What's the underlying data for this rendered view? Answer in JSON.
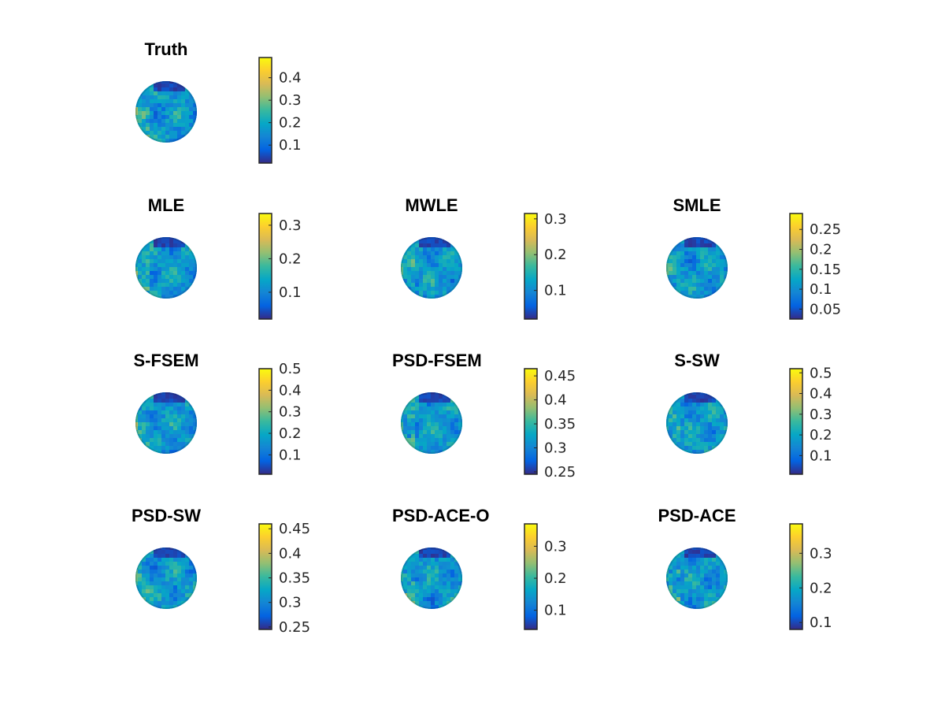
{
  "colors": {
    "parula": [
      "#352a87",
      "#0363e1",
      "#1485d4",
      "#06a7c6",
      "#38b99e",
      "#92bf73",
      "#d9ba56",
      "#fcce2e",
      "#f9fb0e"
    ],
    "axes": "#262626",
    "background": "#ffffff"
  },
  "chart_data": [
    {
      "type": "heatmap",
      "title": "Truth",
      "colorbar": {
        "ticks": [
          "0.1",
          "0.2",
          "0.3",
          "0.4"
        ],
        "range": [
          0.02,
          0.49
        ]
      }
    },
    {
      "type": "heatmap",
      "title": "MLE",
      "colorbar": {
        "ticks": [
          "0.1",
          "0.2",
          "0.3"
        ],
        "range": [
          0.02,
          0.335
        ]
      }
    },
    {
      "type": "heatmap",
      "title": "MWLE",
      "colorbar": {
        "ticks": [
          "0.1",
          "0.2",
          "0.3"
        ],
        "range": [
          0.02,
          0.315
        ]
      }
    },
    {
      "type": "heatmap",
      "title": "SMLE",
      "colorbar": {
        "ticks": [
          "0.05",
          "0.1",
          "0.15",
          "0.2",
          "0.25"
        ],
        "range": [
          0.025,
          0.29
        ]
      }
    },
    {
      "type": "heatmap",
      "title": "S-FSEM",
      "colorbar": {
        "ticks": [
          "0.1",
          "0.2",
          "0.3",
          "0.4",
          "0.5"
        ],
        "range": [
          0.01,
          0.5
        ]
      }
    },
    {
      "type": "heatmap",
      "title": "PSD-FSEM",
      "colorbar": {
        "ticks": [
          "0.25",
          "0.3",
          "0.35",
          "0.4",
          "0.45"
        ],
        "range": [
          0.245,
          0.465
        ]
      }
    },
    {
      "type": "heatmap",
      "title": "S-SW",
      "colorbar": {
        "ticks": [
          "0.1",
          "0.2",
          "0.3",
          "0.4",
          "0.5"
        ],
        "range": [
          0.01,
          0.52
        ]
      }
    },
    {
      "type": "heatmap",
      "title": "PSD-SW",
      "colorbar": {
        "ticks": [
          "0.25",
          "0.3",
          "0.35",
          "0.4",
          "0.45"
        ],
        "range": [
          0.245,
          0.46
        ]
      }
    },
    {
      "type": "heatmap",
      "title": "PSD-ACE-O",
      "colorbar": {
        "ticks": [
          "0.1",
          "0.2",
          "0.3"
        ],
        "range": [
          0.04,
          0.37
        ]
      }
    },
    {
      "type": "heatmap",
      "title": "PSD-ACE",
      "colorbar": {
        "ticks": [
          "0.1",
          "0.2",
          "0.3"
        ],
        "range": [
          0.08,
          0.385
        ]
      }
    }
  ]
}
